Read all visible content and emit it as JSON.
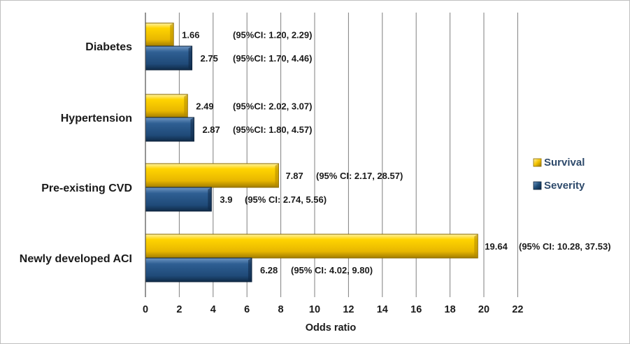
{
  "chart_data": {
    "type": "bar",
    "orientation": "horizontal",
    "categories": [
      "Diabetes",
      "Hypertension",
      "Pre-existing CVD",
      "Newly developed ACI"
    ],
    "series": [
      {
        "name": "Survival",
        "color": "#f5c400",
        "values": [
          1.66,
          2.49,
          7.87,
          19.64
        ],
        "value_labels": [
          "1.66",
          "2.49",
          "7.87",
          "19.64"
        ],
        "ci_labels": [
          "(95%CI: 1.20, 2.29)",
          "(95%CI: 2.02, 3.07)",
          "(95% CI: 2.17, 28.57)",
          "(95% CI: 10.28, 37.53)"
        ]
      },
      {
        "name": "Severity",
        "color": "#1f4e79",
        "values": [
          2.75,
          2.87,
          3.9,
          6.28
        ],
        "value_labels": [
          "2.75",
          "2.87",
          "3.9",
          "6.28"
        ],
        "ci_labels": [
          "(95%CI: 1.70, 4.46)",
          "(95%CI: 1.80, 4.57)",
          "(95% CI: 2.74, 5.56)",
          "(95% CI: 4.02, 9.80)"
        ]
      }
    ],
    "title": "",
    "xlabel": "Odds ratio",
    "ylabel": "",
    "xlim": [
      0,
      22
    ],
    "xticks": [
      0,
      2,
      4,
      6,
      8,
      10,
      12,
      14,
      16,
      18,
      20,
      22
    ],
    "grid": "vertical",
    "legend": "right"
  }
}
